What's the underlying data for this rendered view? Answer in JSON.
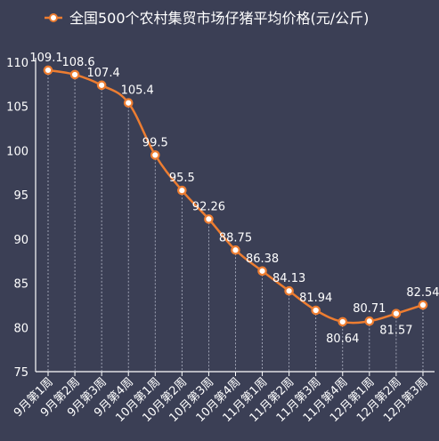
{
  "chart_data": {
    "type": "line",
    "legend": "全国500个农村集贸市场仔猪平均价格(元/公斤)",
    "legend_position": "top",
    "categories": [
      "9月第1周",
      "9月第2周",
      "9月第3周",
      "9月第4周",
      "10月第1周",
      "10月第2周",
      "10月第3周",
      "10月第4周",
      "11月第1周",
      "11月第2周",
      "11月第3周",
      "11月第4周",
      "12月第1周",
      "12月第2周",
      "12月第3周"
    ],
    "series": [
      {
        "name": "全国500个农村集贸市场仔猪平均价格(元/公斤)",
        "values": [
          109.1,
          108.6,
          107.4,
          105.4,
          99.5,
          95.5,
          92.26,
          88.75,
          86.38,
          84.13,
          81.94,
          80.64,
          80.71,
          81.57,
          82.54
        ],
        "data_labels": [
          "109.1",
          "108.6",
          "107.4",
          "105.4",
          "99.5",
          "95.5",
          "92.26",
          "88.75",
          "86.38",
          "84.13",
          "81.94",
          "80.64",
          "80.71",
          "81.57",
          "82.54"
        ]
      }
    ],
    "ylim": [
      75,
      110
    ],
    "yticks": [
      "75",
      "80",
      "85",
      "90",
      "95",
      "100",
      "105",
      "110"
    ],
    "xlabel": "",
    "ylabel": "",
    "grid": false,
    "drop_lines": true,
    "line_color": "#ed7d31",
    "marker_fill": "#ffffff",
    "background_color": "#3b3f55"
  }
}
